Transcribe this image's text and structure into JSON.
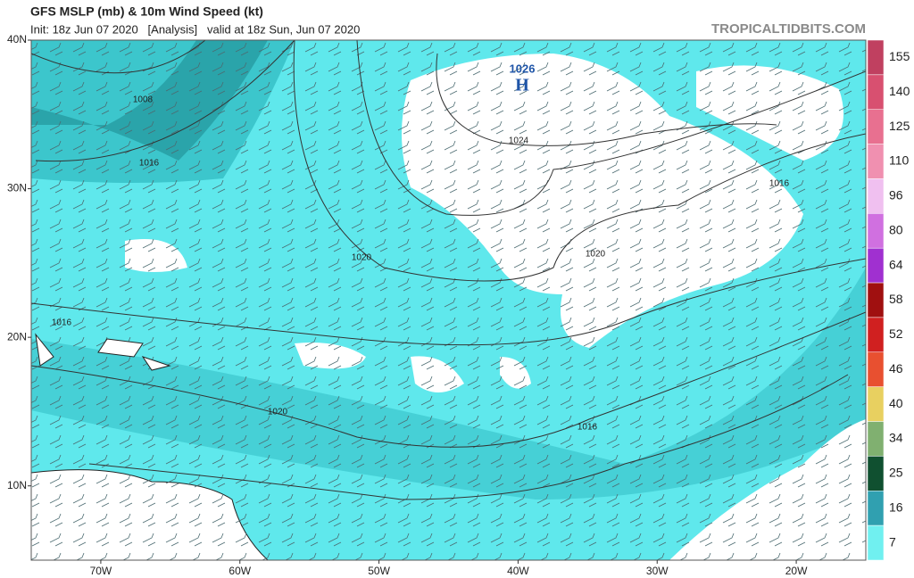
{
  "header": {
    "title": "GFS MSLP (mb) & 10m Wind Speed (kt)",
    "subtitle": "Init: 18z Jun 07 2020   [Analysis]   valid at 18z Sun, Jun 07 2020",
    "brand": "TROPICALTIDBITS.COM"
  },
  "map": {
    "lonlim": [
      -75,
      -15
    ],
    "latlim": [
      5,
      40
    ],
    "lat_ticks": [
      {
        "value": 40,
        "label": "40N"
      },
      {
        "value": 30,
        "label": "30N"
      },
      {
        "value": 20,
        "label": "20N"
      },
      {
        "value": 10,
        "label": "10N"
      }
    ],
    "lon_ticks": [
      {
        "value": -70,
        "label": "70W"
      },
      {
        "value": -60,
        "label": "60W"
      },
      {
        "value": -50,
        "label": "50W"
      },
      {
        "value": -40,
        "label": "40W"
      },
      {
        "value": -30,
        "label": "30W"
      },
      {
        "value": -20,
        "label": "20W"
      }
    ],
    "contour_labels": [
      1008,
      1016,
      1016,
      1020,
      1024,
      1020,
      1020,
      1016,
      1016
    ],
    "high": {
      "pressure": 1026,
      "label": "H"
    }
  },
  "colorbar": {
    "labels": [
      155,
      140,
      125,
      110,
      96,
      80,
      64,
      58,
      52,
      46,
      40,
      34,
      25,
      16,
      7
    ],
    "colors": [
      "#c04060",
      "#d85070",
      "#e87090",
      "#f090b0",
      "#f0c0f0",
      "#d070e0",
      "#a030d0",
      "#a01010",
      "#d02020",
      "#e85030",
      "#e8d060",
      "#80b070",
      "#105030",
      "#30a0b0",
      "#70f0f0"
    ]
  }
}
